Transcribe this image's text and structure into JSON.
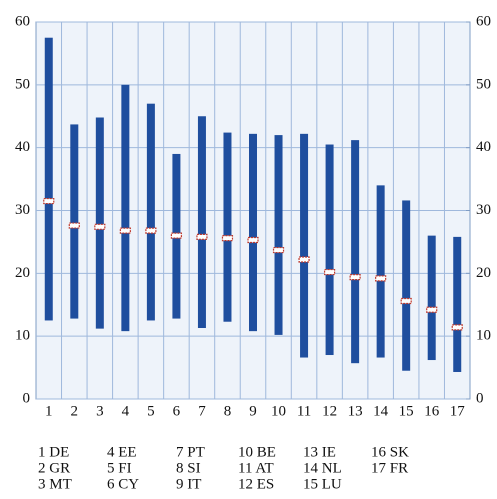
{
  "chart_data": {
    "type": "range",
    "categories": [
      "1",
      "2",
      "3",
      "4",
      "5",
      "6",
      "7",
      "8",
      "9",
      "10",
      "11",
      "12",
      "13",
      "14",
      "15",
      "16",
      "17"
    ],
    "low": [
      12.5,
      12.8,
      11.2,
      10.8,
      12.5,
      12.8,
      11.3,
      12.3,
      10.8,
      10.2,
      6.6,
      7.0,
      5.7,
      6.6,
      4.5,
      6.2,
      4.3
    ],
    "high": [
      57.5,
      43.7,
      44.8,
      50.0,
      47.0,
      39.0,
      45.0,
      42.4,
      42.2,
      42.0,
      42.2,
      40.5,
      41.2,
      34.0,
      31.6,
      26.0,
      25.8
    ],
    "marker": [
      31.5,
      27.6,
      27.4,
      26.8,
      26.8,
      26.0,
      25.8,
      25.6,
      25.3,
      23.7,
      22.2,
      20.2,
      19.4,
      19.2,
      15.6,
      14.2,
      11.4
    ],
    "color": "#1f4e9e",
    "marker_color": "#c0392b",
    "ylim": [
      0,
      60
    ],
    "yticks": [
      0,
      10,
      20,
      30,
      40,
      50,
      60
    ],
    "y2lim": [
      0,
      60
    ],
    "y2ticks": [
      0,
      10,
      20,
      30,
      40,
      50,
      60
    ],
    "grid": true,
    "legend": [
      "1 DE",
      "2 GR",
      "3 MT",
      "4 EE",
      "5 FI",
      "6 CY",
      "7 PT",
      "8 SI",
      "9 IT",
      "10 BE",
      "11 AT",
      "12 ES",
      "13 IE",
      "14 NL",
      "15 LU",
      "16 SK",
      "17 FR"
    ]
  }
}
